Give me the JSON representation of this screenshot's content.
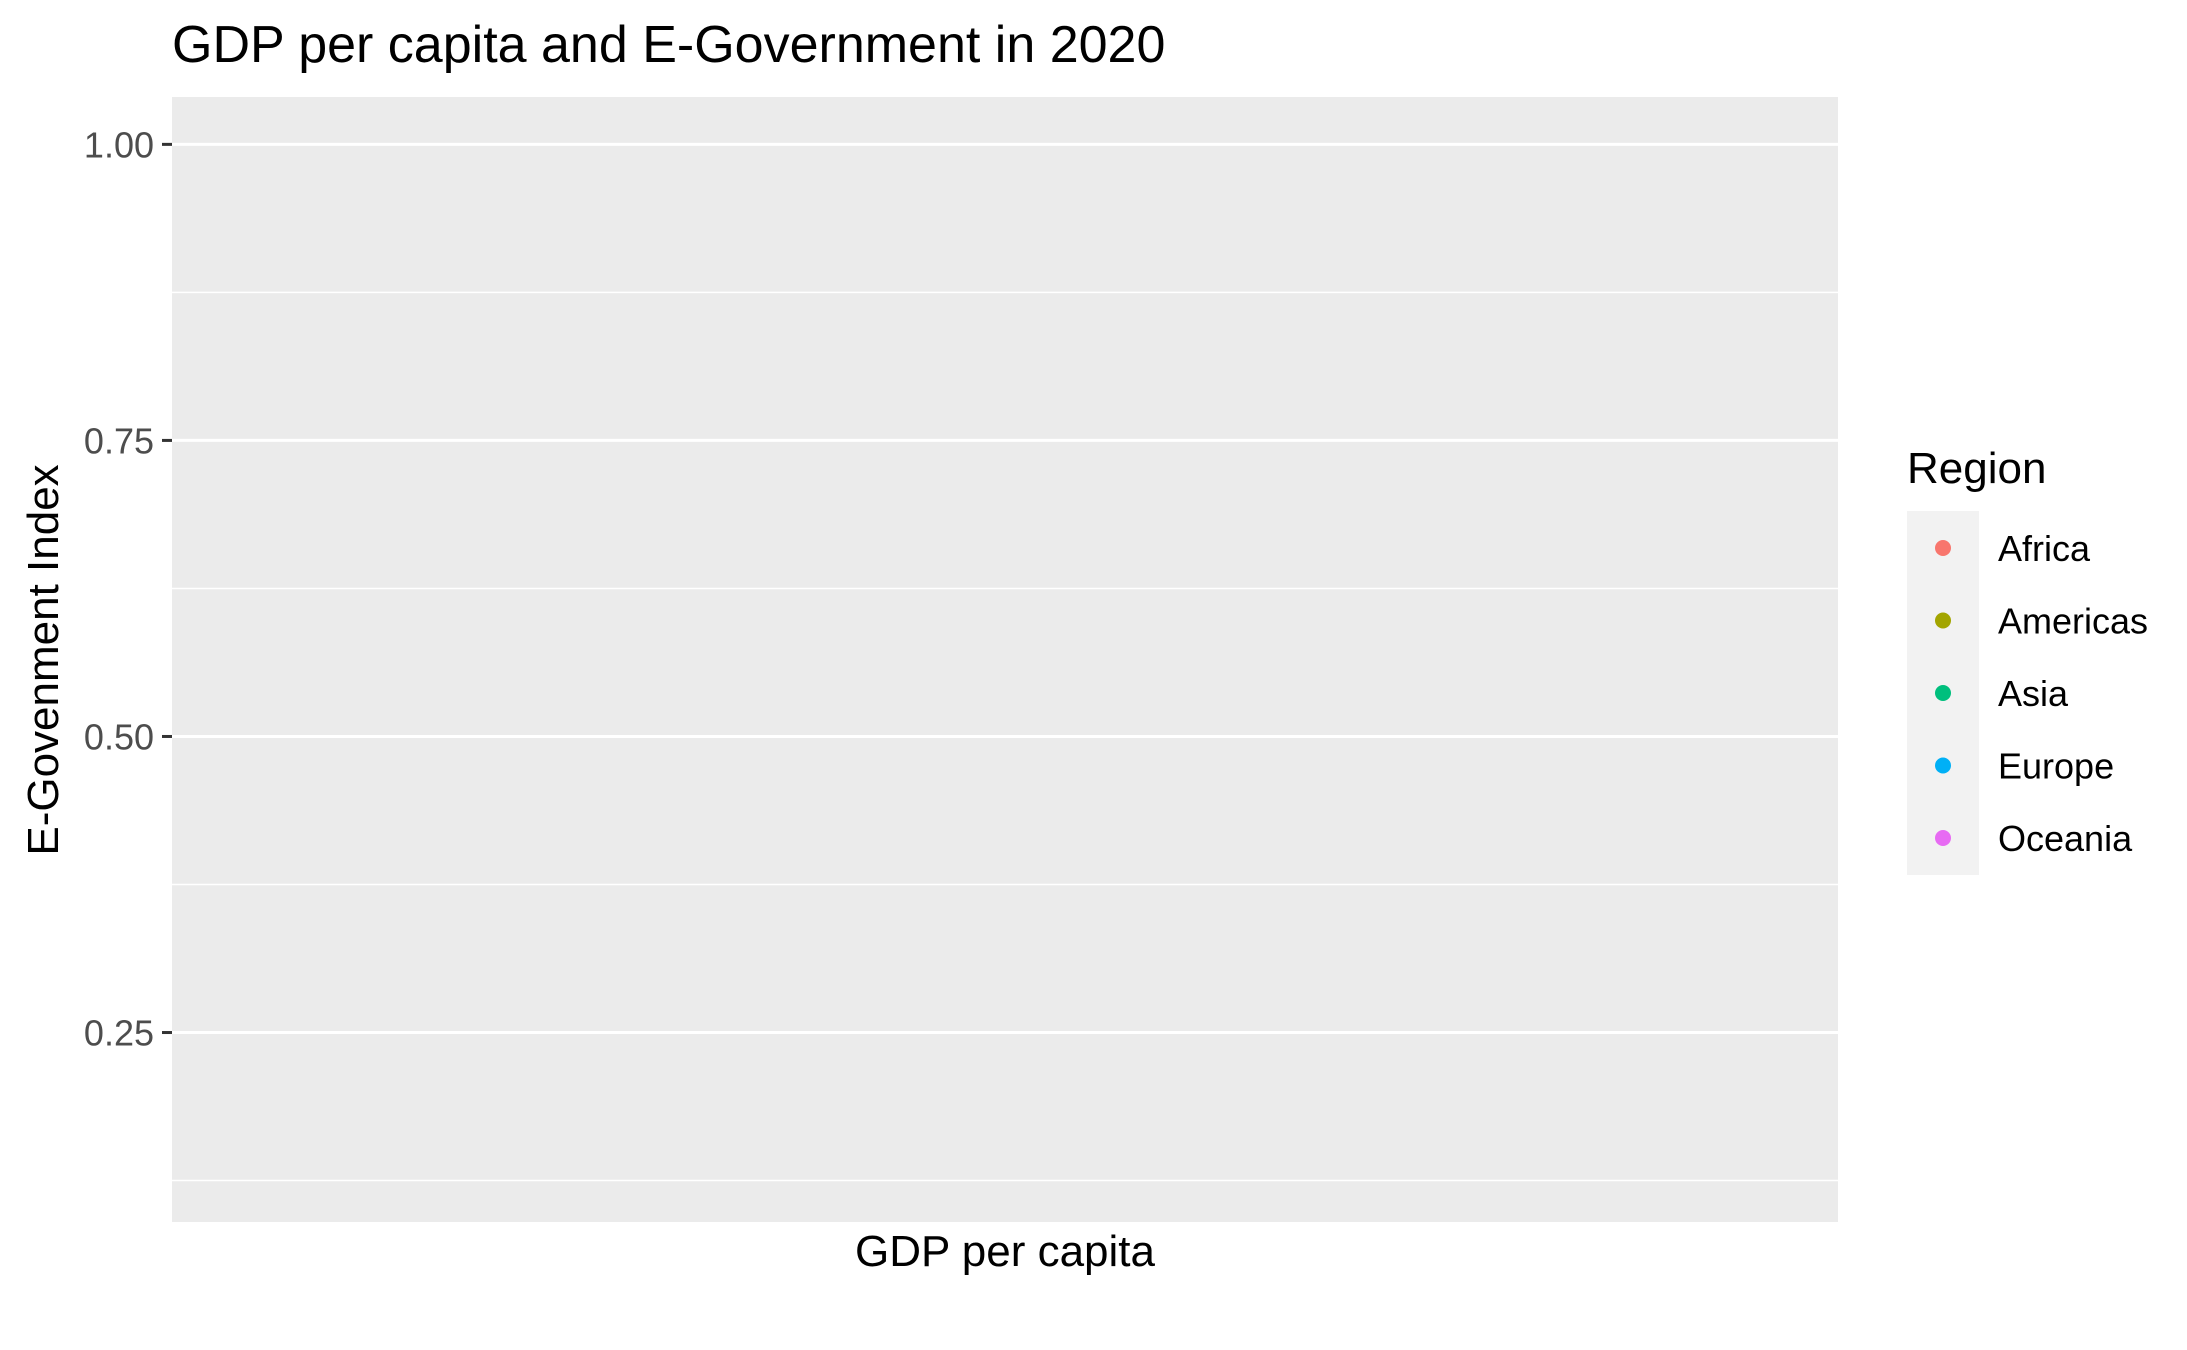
{
  "chart_data": {
    "type": "scatter",
    "title": "GDP per capita and E-Government in 2020",
    "xlabel": "GDP per capita",
    "ylabel": "E-Govenment Index",
    "ylim": [
      0.09,
      1.04
    ],
    "yticks": [
      0.25,
      0.5,
      0.75,
      1.0
    ],
    "ytick_labels": [
      "0.25",
      "0.50",
      "0.75",
      "1.00"
    ],
    "x_ticks_shown": false,
    "grid": true,
    "background": "#ebebeb",
    "legend": {
      "title": "Region",
      "placement": "right",
      "entries": [
        {
          "name": "Africa",
          "color": "#f8766d"
        },
        {
          "name": "Americas",
          "color": "#a3a500"
        },
        {
          "name": "Asia",
          "color": "#00bf7d"
        },
        {
          "name": "Europe",
          "color": "#00b0f6"
        },
        {
          "name": "Oceania",
          "color": "#e76bf3"
        }
      ]
    },
    "series": []
  }
}
